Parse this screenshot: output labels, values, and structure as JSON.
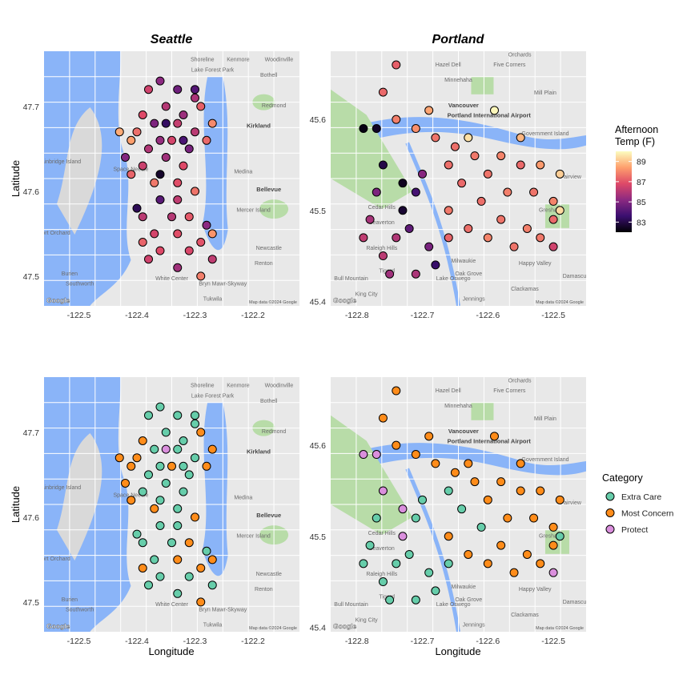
{
  "colors": {
    "extra_care": "#66CDAA",
    "most_concern": "#FF8C1A",
    "protect": "#DA8FDD",
    "water": "#8AB4F8",
    "land": "#E8E8E8",
    "park": "#B8DCA8"
  },
  "map_text": {
    "google": "Google",
    "attribution": "Map data ©2024 Google",
    "seattle": [
      "Shoreline",
      "Lake Forest Park",
      "Kenmore",
      "Woodinville",
      "Bothell",
      "Kirkland",
      "Redmond",
      "Medina",
      "Bellevue",
      "Bainbridge Island",
      "Mercer Island",
      "Newcastle",
      "Burien",
      "White Center",
      "Tukwila",
      "Renton",
      "Southworth",
      "Bryn Mawr-Skyway",
      "Space Needle",
      "Port Orchard"
    ],
    "portland": [
      "Hazel Dell",
      "Five Corners",
      "Orchards",
      "Minnehaha",
      "Vancouver",
      "Portland International Airport",
      "Mill Plain",
      "Government Island",
      "Cedar Hills",
      "Beaverton",
      "Raleigh Hills",
      "Tigard",
      "Lake Oswego",
      "Oak Grove",
      "Milwaukie",
      "Happy Valley",
      "Clackamas",
      "Gresham",
      "Damascus",
      "Fairview",
      "Jennings",
      "Bull Mountain",
      "King City"
    ]
  },
  "chart_data": [
    {
      "type": "scatter",
      "title": "Seattle",
      "xlabel": "",
      "ylabel": "Latitude",
      "xlim": [
        -122.56,
        -122.12
      ],
      "ylim": [
        47.465,
        47.765
      ],
      "xticks": [
        -122.5,
        -122.4,
        -122.3,
        -122.2
      ],
      "yticks": [
        47.5,
        47.6,
        47.7
      ],
      "color_by": "Afternoon Temp (F)",
      "points": [
        [
          -122.38,
          47.72,
          86.5
        ],
        [
          -122.36,
          47.73,
          85.2
        ],
        [
          -122.33,
          47.72,
          84.6
        ],
        [
          -122.3,
          47.71,
          85.8
        ],
        [
          -122.35,
          47.7,
          86.0
        ],
        [
          -122.39,
          47.69,
          86.8
        ],
        [
          -122.32,
          47.69,
          85.5
        ],
        [
          -122.29,
          47.7,
          87.2
        ],
        [
          -122.37,
          47.68,
          84.9
        ],
        [
          -122.33,
          47.68,
          86.3
        ],
        [
          -122.4,
          47.67,
          87.5
        ],
        [
          -122.3,
          47.67,
          86.1
        ],
        [
          -122.27,
          47.68,
          88.0
        ],
        [
          -122.36,
          47.66,
          85.4
        ],
        [
          -122.41,
          47.66,
          88.4
        ],
        [
          -122.34,
          47.66,
          86.6
        ],
        [
          -122.31,
          47.65,
          84.8
        ],
        [
          -122.38,
          47.65,
          85.9
        ],
        [
          -122.43,
          47.67,
          88.6
        ],
        [
          -122.28,
          47.66,
          87.4
        ],
        [
          -122.39,
          47.63,
          86.4
        ],
        [
          -122.35,
          47.64,
          85.6
        ],
        [
          -122.41,
          47.62,
          87.3
        ],
        [
          -122.32,
          47.63,
          86.8
        ],
        [
          -122.37,
          47.61,
          87.7
        ],
        [
          -122.33,
          47.61,
          86.9
        ],
        [
          -122.3,
          47.6,
          87.6
        ],
        [
          -122.36,
          47.59,
          84.2
        ],
        [
          -122.33,
          47.59,
          86.2
        ],
        [
          -122.39,
          47.57,
          86.1
        ],
        [
          -122.31,
          47.57,
          87.1
        ],
        [
          -122.37,
          47.55,
          86.6
        ],
        [
          -122.28,
          47.56,
          85.2
        ],
        [
          -122.33,
          47.55,
          86.9
        ],
        [
          -122.39,
          47.54,
          87.3
        ],
        [
          -122.29,
          47.54,
          87.0
        ],
        [
          -122.36,
          47.53,
          86.8
        ],
        [
          -122.31,
          47.53,
          86.7
        ],
        [
          -122.38,
          47.52,
          86.5
        ],
        [
          -122.27,
          47.52,
          86.2
        ],
        [
          -122.33,
          47.51,
          85.6
        ],
        [
          -122.29,
          47.5,
          87.8
        ],
        [
          -122.27,
          47.55,
          88.2
        ],
        [
          -122.35,
          47.68,
          83.4
        ],
        [
          -122.36,
          47.62,
          82.6
        ],
        [
          -122.4,
          47.58,
          83.2
        ],
        [
          -122.3,
          47.72,
          84.1
        ],
        [
          -122.42,
          47.64,
          85.0
        ],
        [
          -122.34,
          47.57,
          86.0
        ],
        [
          -122.32,
          47.66,
          83.9
        ]
      ]
    },
    {
      "type": "scatter",
      "title": "Portland",
      "xlabel": "",
      "ylabel": "",
      "xlim": [
        -122.84,
        -122.45
      ],
      "ylim": [
        45.395,
        45.675
      ],
      "xticks": [
        -122.8,
        -122.7,
        -122.6,
        -122.5
      ],
      "yticks": [
        45.4,
        45.5,
        45.6
      ],
      "color_by": "Afternoon Temp (F)",
      "points": [
        [
          -122.76,
          45.63,
          87.4
        ],
        [
          -122.74,
          45.6,
          87.8
        ],
        [
          -122.71,
          45.59,
          88.1
        ],
        [
          -122.68,
          45.58,
          87.6
        ],
        [
          -122.65,
          45.57,
          87.5
        ],
        [
          -122.62,
          45.56,
          87.7
        ],
        [
          -122.58,
          45.56,
          87.9
        ],
        [
          -122.55,
          45.55,
          87.4
        ],
        [
          -122.52,
          45.55,
          88.3
        ],
        [
          -122.49,
          45.54,
          89.2
        ],
        [
          -122.66,
          45.55,
          87.5
        ],
        [
          -122.6,
          45.54,
          87.6
        ],
        [
          -122.64,
          45.53,
          87.4
        ],
        [
          -122.57,
          45.52,
          87.8
        ],
        [
          -122.53,
          45.52,
          87.6
        ],
        [
          -122.5,
          45.51,
          87.9
        ],
        [
          -122.61,
          45.51,
          87.5
        ],
        [
          -122.66,
          45.5,
          87.7
        ],
        [
          -122.58,
          45.49,
          87.6
        ],
        [
          -122.54,
          45.48,
          87.8
        ],
        [
          -122.5,
          45.49,
          87.4
        ],
        [
          -122.63,
          45.48,
          87.5
        ],
        [
          -122.6,
          45.47,
          87.9
        ],
        [
          -122.66,
          45.47,
          87.3
        ],
        [
          -122.56,
          45.46,
          87.6
        ],
        [
          -122.52,
          45.47,
          87.7
        ],
        [
          -122.7,
          45.54,
          85.1
        ],
        [
          -122.71,
          45.52,
          83.8
        ],
        [
          -122.73,
          45.5,
          82.7
        ],
        [
          -122.72,
          45.48,
          84.3
        ],
        [
          -122.74,
          45.47,
          85.9
        ],
        [
          -122.76,
          45.45,
          86.1
        ],
        [
          -122.75,
          45.43,
          85.6
        ],
        [
          -122.69,
          45.46,
          84.8
        ],
        [
          -122.68,
          45.44,
          83.5
        ],
        [
          -122.77,
          45.59,
          82.5
        ],
        [
          -122.79,
          45.59,
          82.2
        ],
        [
          -122.76,
          45.55,
          83.0
        ],
        [
          -122.73,
          45.53,
          82.4
        ],
        [
          -122.77,
          45.52,
          84.9
        ],
        [
          -122.78,
          45.49,
          85.7
        ],
        [
          -122.71,
          45.43,
          85.8
        ],
        [
          -122.79,
          45.47,
          86.2
        ],
        [
          -122.63,
          45.58,
          89.5
        ],
        [
          -122.59,
          45.61,
          89.9
        ],
        [
          -122.55,
          45.58,
          88.8
        ],
        [
          -122.5,
          45.46,
          86.5
        ],
        [
          -122.49,
          45.5,
          89.4
        ],
        [
          -122.69,
          45.61,
          88.5
        ],
        [
          -122.74,
          45.66,
          87.2
        ]
      ]
    },
    {
      "type": "scatter",
      "title": "",
      "xlabel": "Longitude",
      "ylabel": "Latitude",
      "xlim": [
        -122.56,
        -122.12
      ],
      "ylim": [
        47.465,
        47.765
      ],
      "xticks": [
        -122.5,
        -122.4,
        -122.3,
        -122.2
      ],
      "yticks": [
        47.5,
        47.6,
        47.7
      ],
      "color_by": "Category",
      "points": [
        [
          -122.38,
          47.72,
          "Extra Care"
        ],
        [
          -122.36,
          47.73,
          "Extra Care"
        ],
        [
          -122.33,
          47.72,
          "Extra Care"
        ],
        [
          -122.3,
          47.71,
          "Extra Care"
        ],
        [
          -122.35,
          47.7,
          "Extra Care"
        ],
        [
          -122.39,
          47.69,
          "Most Concern"
        ],
        [
          -122.32,
          47.69,
          "Extra Care"
        ],
        [
          -122.29,
          47.7,
          "Most Concern"
        ],
        [
          -122.37,
          47.68,
          "Extra Care"
        ],
        [
          -122.33,
          47.68,
          "Extra Care"
        ],
        [
          -122.4,
          47.67,
          "Most Concern"
        ],
        [
          -122.3,
          47.67,
          "Extra Care"
        ],
        [
          -122.27,
          47.68,
          "Most Concern"
        ],
        [
          -122.36,
          47.66,
          "Extra Care"
        ],
        [
          -122.41,
          47.66,
          "Most Concern"
        ],
        [
          -122.34,
          47.66,
          "Most Concern"
        ],
        [
          -122.31,
          47.65,
          "Extra Care"
        ],
        [
          -122.38,
          47.65,
          "Extra Care"
        ],
        [
          -122.43,
          47.67,
          "Most Concern"
        ],
        [
          -122.28,
          47.66,
          "Most Concern"
        ],
        [
          -122.39,
          47.63,
          "Extra Care"
        ],
        [
          -122.35,
          47.64,
          "Extra Care"
        ],
        [
          -122.41,
          47.62,
          "Most Concern"
        ],
        [
          -122.32,
          47.63,
          "Extra Care"
        ],
        [
          -122.37,
          47.61,
          "Most Concern"
        ],
        [
          -122.33,
          47.61,
          "Extra Care"
        ],
        [
          -122.3,
          47.6,
          "Most Concern"
        ],
        [
          -122.36,
          47.59,
          "Extra Care"
        ],
        [
          -122.33,
          47.59,
          "Extra Care"
        ],
        [
          -122.39,
          47.57,
          "Extra Care"
        ],
        [
          -122.31,
          47.57,
          "Most Concern"
        ],
        [
          -122.37,
          47.55,
          "Extra Care"
        ],
        [
          -122.28,
          47.56,
          "Extra Care"
        ],
        [
          -122.33,
          47.55,
          "Most Concern"
        ],
        [
          -122.39,
          47.54,
          "Most Concern"
        ],
        [
          -122.29,
          47.54,
          "Most Concern"
        ],
        [
          -122.36,
          47.53,
          "Extra Care"
        ],
        [
          -122.31,
          47.53,
          "Extra Care"
        ],
        [
          -122.38,
          47.52,
          "Extra Care"
        ],
        [
          -122.27,
          47.52,
          "Extra Care"
        ],
        [
          -122.33,
          47.51,
          "Extra Care"
        ],
        [
          -122.29,
          47.5,
          "Most Concern"
        ],
        [
          -122.27,
          47.55,
          "Most Concern"
        ],
        [
          -122.35,
          47.68,
          "Protect"
        ],
        [
          -122.36,
          47.62,
          "Extra Care"
        ],
        [
          -122.4,
          47.58,
          "Extra Care"
        ],
        [
          -122.3,
          47.72,
          "Extra Care"
        ],
        [
          -122.42,
          47.64,
          "Most Concern"
        ],
        [
          -122.34,
          47.57,
          "Extra Care"
        ],
        [
          -122.32,
          47.66,
          "Extra Care"
        ]
      ]
    },
    {
      "type": "scatter",
      "title": "",
      "xlabel": "Longitude",
      "ylabel": "",
      "xlim": [
        -122.84,
        -122.45
      ],
      "ylim": [
        45.395,
        45.675
      ],
      "xticks": [
        -122.8,
        -122.7,
        -122.6,
        -122.5
      ],
      "yticks": [
        45.4,
        45.5,
        45.6
      ],
      "color_by": "Category",
      "points": [
        [
          -122.76,
          45.63,
          "Most Concern"
        ],
        [
          -122.74,
          45.6,
          "Most Concern"
        ],
        [
          -122.71,
          45.59,
          "Most Concern"
        ],
        [
          -122.68,
          45.58,
          "Most Concern"
        ],
        [
          -122.65,
          45.57,
          "Most Concern"
        ],
        [
          -122.62,
          45.56,
          "Most Concern"
        ],
        [
          -122.58,
          45.56,
          "Most Concern"
        ],
        [
          -122.55,
          45.55,
          "Most Concern"
        ],
        [
          -122.52,
          45.55,
          "Most Concern"
        ],
        [
          -122.49,
          45.54,
          "Most Concern"
        ],
        [
          -122.66,
          45.55,
          "Extra Care"
        ],
        [
          -122.6,
          45.54,
          "Most Concern"
        ],
        [
          -122.64,
          45.53,
          "Extra Care"
        ],
        [
          -122.57,
          45.52,
          "Most Concern"
        ],
        [
          -122.53,
          45.52,
          "Most Concern"
        ],
        [
          -122.5,
          45.51,
          "Most Concern"
        ],
        [
          -122.61,
          45.51,
          "Extra Care"
        ],
        [
          -122.66,
          45.5,
          "Most Concern"
        ],
        [
          -122.58,
          45.49,
          "Most Concern"
        ],
        [
          -122.54,
          45.48,
          "Most Concern"
        ],
        [
          -122.5,
          45.49,
          "Most Concern"
        ],
        [
          -122.63,
          45.48,
          "Most Concern"
        ],
        [
          -122.6,
          45.47,
          "Most Concern"
        ],
        [
          -122.66,
          45.47,
          "Extra Care"
        ],
        [
          -122.56,
          45.46,
          "Most Concern"
        ],
        [
          -122.52,
          45.47,
          "Most Concern"
        ],
        [
          -122.7,
          45.54,
          "Extra Care"
        ],
        [
          -122.71,
          45.52,
          "Extra Care"
        ],
        [
          -122.73,
          45.5,
          "Protect"
        ],
        [
          -122.72,
          45.48,
          "Extra Care"
        ],
        [
          -122.74,
          45.47,
          "Extra Care"
        ],
        [
          -122.76,
          45.45,
          "Extra Care"
        ],
        [
          -122.75,
          45.43,
          "Extra Care"
        ],
        [
          -122.69,
          45.46,
          "Extra Care"
        ],
        [
          -122.68,
          45.44,
          "Extra Care"
        ],
        [
          -122.77,
          45.59,
          "Protect"
        ],
        [
          -122.79,
          45.59,
          "Protect"
        ],
        [
          -122.76,
          45.55,
          "Protect"
        ],
        [
          -122.73,
          45.53,
          "Protect"
        ],
        [
          -122.77,
          45.52,
          "Extra Care"
        ],
        [
          -122.78,
          45.49,
          "Extra Care"
        ],
        [
          -122.71,
          45.43,
          "Extra Care"
        ],
        [
          -122.79,
          45.47,
          "Extra Care"
        ],
        [
          -122.63,
          45.58,
          "Most Concern"
        ],
        [
          -122.59,
          45.61,
          "Most Concern"
        ],
        [
          -122.55,
          45.58,
          "Most Concern"
        ],
        [
          -122.5,
          45.46,
          "Protect"
        ],
        [
          -122.49,
          45.5,
          "Extra Care"
        ],
        [
          -122.69,
          45.61,
          "Most Concern"
        ],
        [
          -122.74,
          45.66,
          "Most Concern"
        ]
      ]
    }
  ],
  "legend_temp": {
    "title_line1": "Afternoon",
    "title_line2": "Temp (F)",
    "ticks": [
      "89",
      "87",
      "85",
      "83"
    ],
    "min": 82,
    "max": 90
  },
  "legend_category": {
    "title": "Category",
    "items": [
      {
        "label": "Extra Care",
        "color": "#66CDAA"
      },
      {
        "label": "Most Concern",
        "color": "#FF8C1A"
      },
      {
        "label": "Protect",
        "color": "#DA8FDD"
      }
    ]
  }
}
